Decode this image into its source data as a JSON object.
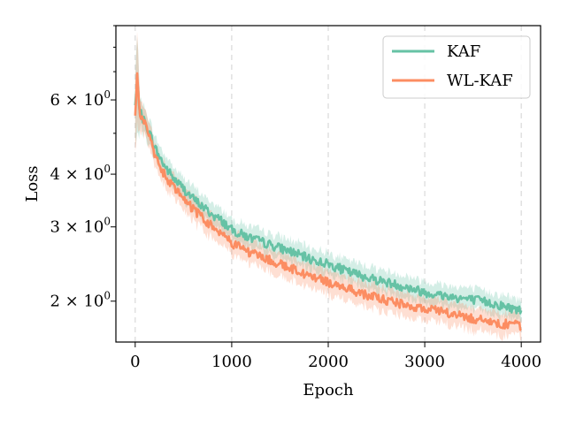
{
  "chart_data": {
    "type": "line",
    "title": "",
    "xlabel": "Epoch",
    "ylabel": "Loss",
    "xlim": [
      -200,
      4200
    ],
    "ylim": [
      1.6,
      9.0
    ],
    "yscale": "log",
    "xticks": [
      0,
      1000,
      2000,
      3000,
      4000
    ],
    "xtick_labels": [
      "0",
      "1000",
      "2000",
      "3000",
      "4000"
    ],
    "ymajor_ticks": [
      2,
      3,
      4,
      6
    ],
    "ytick_labels": [
      {
        "base": "2 × 10",
        "exp": "0"
      },
      {
        "base": "3 × 10",
        "exp": "0"
      },
      {
        "base": "4 × 10",
        "exp": "0"
      },
      {
        "base": "6 × 10",
        "exp": "0"
      }
    ],
    "yminor_ticks": [
      5,
      7,
      8,
      9
    ],
    "grid": "x-dashed",
    "legend_position": "top-right",
    "shaded_band": "mean ± spread",
    "series": [
      {
        "name": "KAF",
        "color": "#66c2a5",
        "x": [
          0,
          20,
          50,
          100,
          150,
          200,
          250,
          300,
          350,
          400,
          500,
          600,
          700,
          800,
          900,
          1000,
          1200,
          1400,
          1600,
          1800,
          2000,
          2200,
          2400,
          2600,
          2800,
          3000,
          3200,
          3400,
          3600,
          3800,
          4000
        ],
        "values": [
          5.8,
          6.6,
          5.6,
          5.3,
          5.0,
          4.65,
          4.4,
          4.2,
          4.05,
          3.9,
          3.7,
          3.5,
          3.35,
          3.2,
          3.1,
          2.95,
          2.82,
          2.72,
          2.63,
          2.52,
          2.45,
          2.35,
          2.28,
          2.22,
          2.16,
          2.1,
          2.06,
          2.03,
          2.0,
          1.95,
          1.9
        ],
        "spread": [
          1.1,
          1.8,
          0.5,
          0.4,
          0.35,
          0.3,
          0.28,
          0.27,
          0.26,
          0.25,
          0.24,
          0.23,
          0.22,
          0.21,
          0.2,
          0.19,
          0.18,
          0.17,
          0.17,
          0.16,
          0.16,
          0.15,
          0.15,
          0.14,
          0.14,
          0.13,
          0.13,
          0.13,
          0.12,
          0.12,
          0.11
        ]
      },
      {
        "name": "WL-KAF",
        "color": "#fc8d62",
        "x": [
          0,
          20,
          50,
          100,
          150,
          200,
          250,
          300,
          350,
          400,
          500,
          600,
          700,
          800,
          900,
          1000,
          1200,
          1400,
          1600,
          1800,
          2000,
          2200,
          2400,
          2600,
          2800,
          3000,
          3200,
          3400,
          3600,
          3800,
          4000
        ],
        "values": [
          5.5,
          6.8,
          5.55,
          5.25,
          4.85,
          4.45,
          4.2,
          4.0,
          3.85,
          3.7,
          3.5,
          3.3,
          3.15,
          3.0,
          2.9,
          2.75,
          2.6,
          2.5,
          2.4,
          2.3,
          2.22,
          2.14,
          2.07,
          2.01,
          1.96,
          1.92,
          1.88,
          1.84,
          1.8,
          1.77,
          1.75
        ]
      }
    ]
  }
}
